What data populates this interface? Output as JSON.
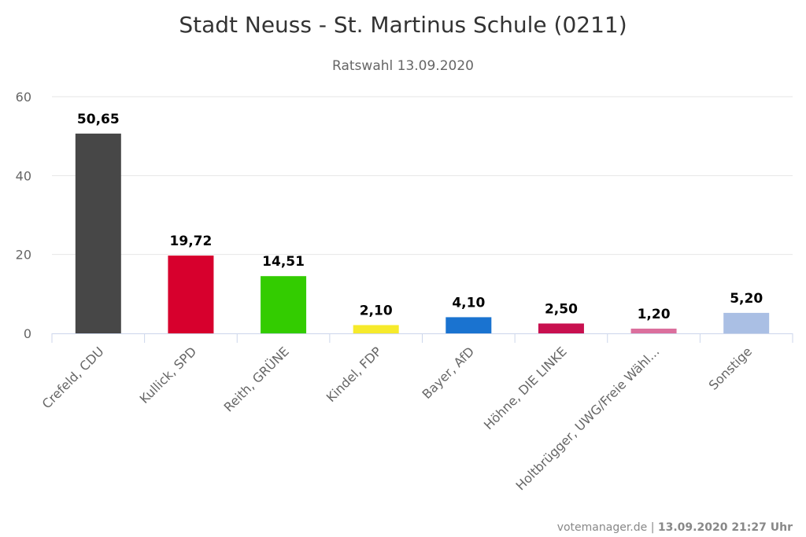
{
  "chart_data": {
    "type": "bar",
    "title": "Stadt Neuss - St. Martinus Schule (0211)",
    "subtitle": "Ratswahl 13.09.2020",
    "categories": [
      "Crefeld, CDU",
      "Kullick, SPD",
      "Reith, GRÜNE",
      "Kindel, FDP",
      "Bayer, AfD",
      "Höhne, DIE LINKE",
      "Holtbrügger, UWG/Freie Wähl...",
      "Sonstige"
    ],
    "values": [
      50.65,
      19.72,
      14.51,
      2.1,
      4.1,
      2.5,
      1.2,
      5.2
    ],
    "value_labels": [
      "50,65",
      "19,72",
      "14,51",
      "2,10",
      "4,10",
      "2,50",
      "1,20",
      "5,20"
    ],
    "colors": [
      "#474747",
      "#d7002d",
      "#33cc00",
      "#f6ea2b",
      "#1a73d0",
      "#c8104f",
      "#db6f9d",
      "#aabfe4"
    ],
    "ylim": [
      0,
      60
    ],
    "yticks": [
      "0",
      "20",
      "40",
      "60"
    ],
    "xlabel": "",
    "ylabel": "",
    "grid": true,
    "legend": "none"
  },
  "credits": {
    "source": "votemanager.de",
    "separator": "|",
    "timestamp": "13.09.2020 21:27 Uhr"
  }
}
